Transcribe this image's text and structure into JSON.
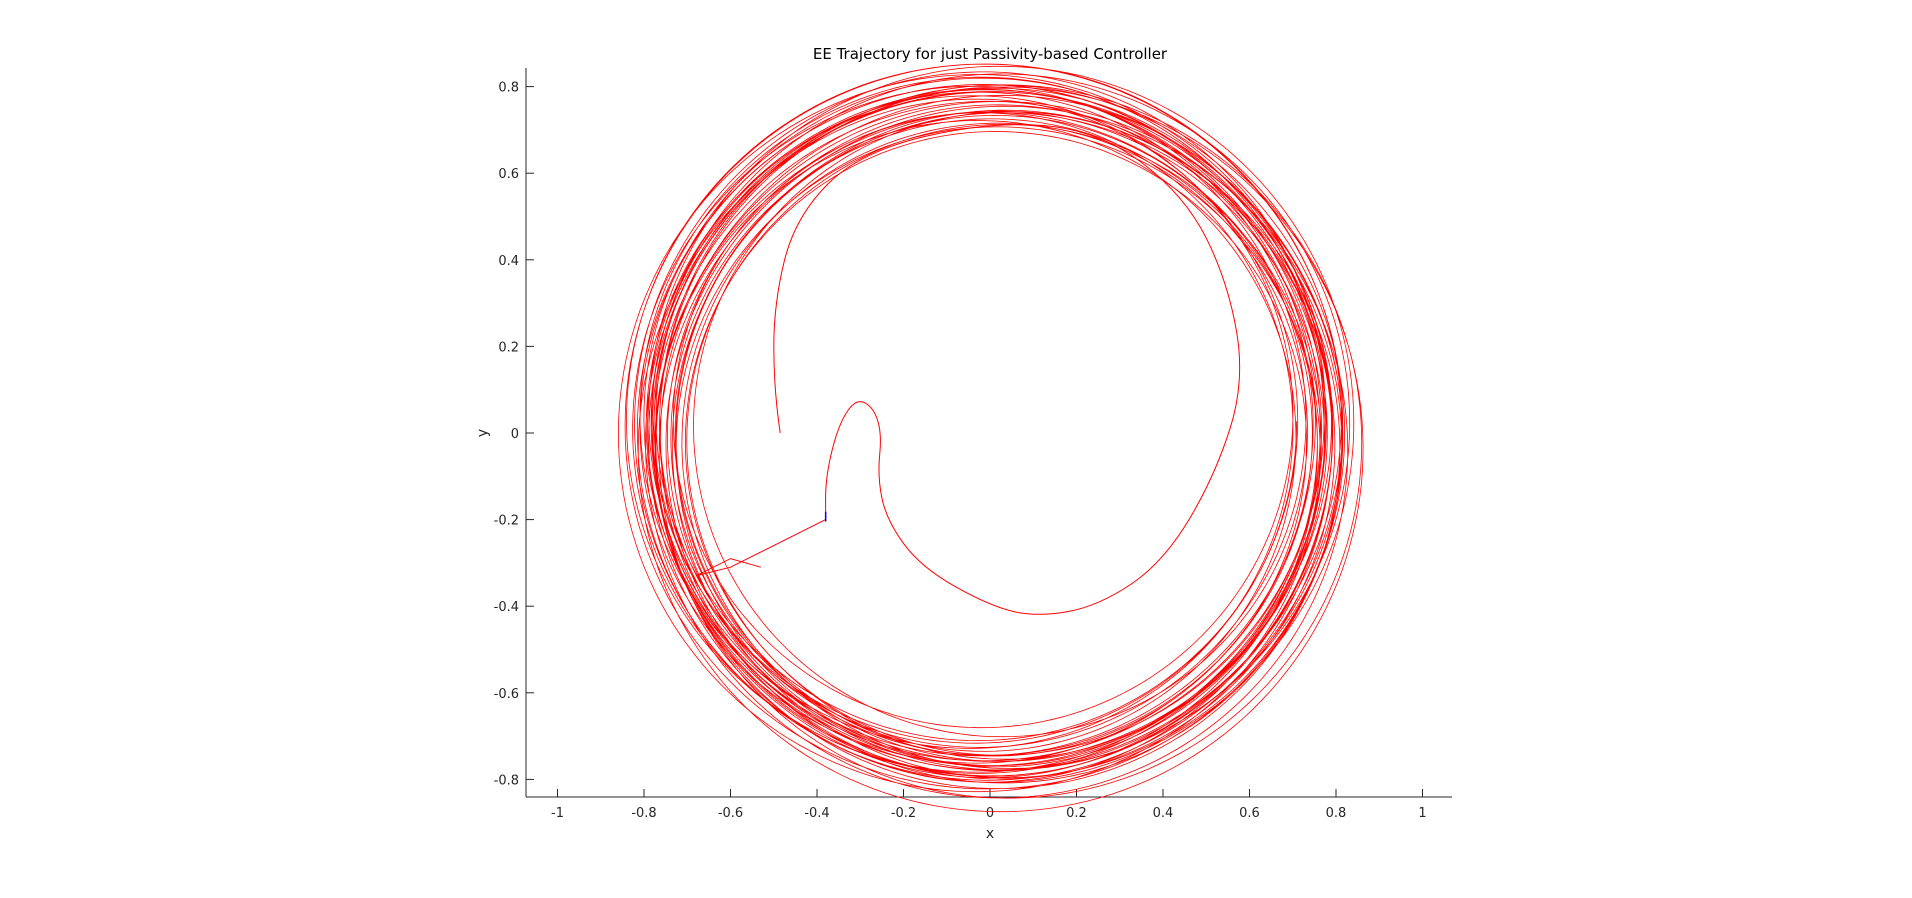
{
  "chart_data": {
    "type": "line",
    "title": "EE Trajectory for just Passivity-based Controller",
    "xlabel": "x",
    "ylabel": "y",
    "xlim": [
      -1.08,
      1.08
    ],
    "ylim": [
      -0.85,
      0.85
    ],
    "xticks": [
      -1,
      -0.8,
      -0.6,
      -0.4,
      -0.2,
      0,
      0.2,
      0.4,
      0.6,
      0.8,
      1
    ],
    "yticks": [
      -0.8,
      -0.6,
      -0.4,
      -0.2,
      0,
      0.2,
      0.4,
      0.6,
      0.8
    ],
    "xtick_labels": [
      "-1",
      "-0.8",
      "-0.6",
      "-0.4",
      "-0.2",
      "0",
      "0.2",
      "0.4",
      "0.6",
      "0.8",
      "1"
    ],
    "ytick_labels": [
      "-0.8",
      "-0.6",
      "-0.4",
      "-0.2",
      "0",
      "0.2",
      "0.4",
      "0.6",
      "0.8"
    ],
    "grid": false,
    "box": "left-bottom axes only",
    "series": [
      {
        "color": "#ff0000",
        "line_width": 1,
        "start_point": [
          -0.38,
          -0.2
        ],
        "transient_path": [
          [
            -0.38,
            -0.2
          ],
          [
            -0.5,
            -0.26
          ],
          [
            -0.6,
            -0.31
          ],
          [
            -0.68,
            -0.33
          ],
          [
            -0.6,
            -0.29
          ],
          [
            -0.53,
            -0.31
          ]
        ],
        "inner_loop_path": [
          [
            -0.38,
            -0.2
          ],
          [
            -0.38,
            -0.1
          ],
          [
            -0.35,
            0.02
          ],
          [
            -0.31,
            0.08
          ],
          [
            -0.27,
            0.06
          ],
          [
            -0.25,
            0.0
          ],
          [
            -0.26,
            -0.1
          ],
          [
            -0.24,
            -0.2
          ],
          [
            -0.16,
            -0.31
          ],
          [
            0.0,
            -0.4
          ],
          [
            0.11,
            -0.425
          ],
          [
            0.25,
            -0.4
          ],
          [
            0.4,
            -0.3
          ],
          [
            0.52,
            -0.1
          ],
          [
            0.59,
            0.12
          ],
          [
            0.55,
            0.35
          ],
          [
            0.45,
            0.55
          ],
          [
            0.25,
            0.7
          ],
          [
            0.0,
            0.72
          ],
          [
            -0.3,
            0.65
          ],
          [
            -0.45,
            0.5
          ],
          [
            -0.5,
            0.3
          ],
          [
            -0.5,
            0.1
          ],
          [
            -0.47,
            -0.1
          ]
        ],
        "orbit": {
          "center": [
            0.0,
            0.0
          ],
          "radius_min": 0.7,
          "radius_max": 0.85,
          "approx_revolutions": 40
        }
      },
      {
        "color": "#0000ff",
        "marker": "small tick at start",
        "point": [
          -0.38,
          -0.2
        ]
      }
    ]
  }
}
